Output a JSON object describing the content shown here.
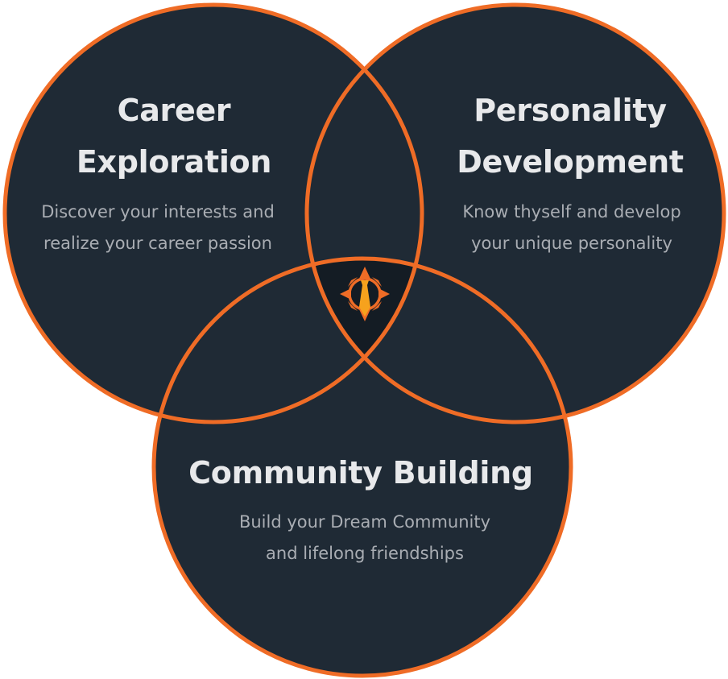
{
  "colors": {
    "circle_fill": "#1f2a35",
    "circle_stroke": "#ef6c26",
    "center_fill": "#141c24",
    "title_text": "#e8e9eb",
    "desc_text": "#a9adb3",
    "logo_orange": "#ef6c26",
    "logo_tie": "#f6a21d"
  },
  "center_logo": {
    "icon": "compass-tie-icon"
  },
  "circles": {
    "career": {
      "title_lines": [
        "Career",
        "Exploration"
      ],
      "desc_lines": [
        "Discover your interests and",
        "realize your career passion"
      ]
    },
    "personality": {
      "title_lines": [
        "Personality",
        "Development"
      ],
      "desc_lines": [
        "Know thyself and develop",
        "your unique personality"
      ]
    },
    "community": {
      "title_lines": [
        "Community Building"
      ],
      "desc_lines": [
        "Build your Dream Community",
        "and lifelong friendships"
      ]
    }
  }
}
